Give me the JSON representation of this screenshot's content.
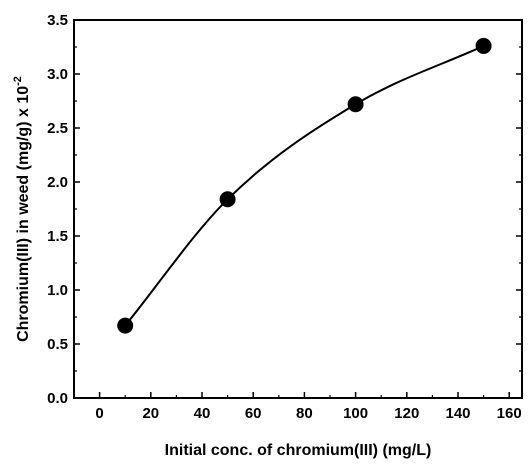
{
  "chart_data": {
    "type": "scatter",
    "title": "",
    "xlabel": "Initial conc. of chromium(III) (mg/L)",
    "ylabel": "Chromium(III) in weed (mg/g) x 10",
    "ylabel_superscript": "-2",
    "xlim": [
      -10,
      165
    ],
    "ylim": [
      0,
      3.5
    ],
    "x_ticks": [
      "0",
      "20",
      "40",
      "60",
      "80",
      "100",
      "120",
      "140",
      "160"
    ],
    "y_ticks": [
      "0.0",
      "0.5",
      "1.0",
      "1.5",
      "2.0",
      "2.5",
      "3.0",
      "3.5"
    ],
    "grid": false,
    "legend": "none",
    "series": [
      {
        "x": [
          10,
          50,
          100,
          150
        ],
        "y": [
          0.67,
          1.84,
          2.72,
          3.26
        ],
        "marker": "filled-circle",
        "fit_curve": "smooth",
        "color": "#000000"
      }
    ]
  }
}
